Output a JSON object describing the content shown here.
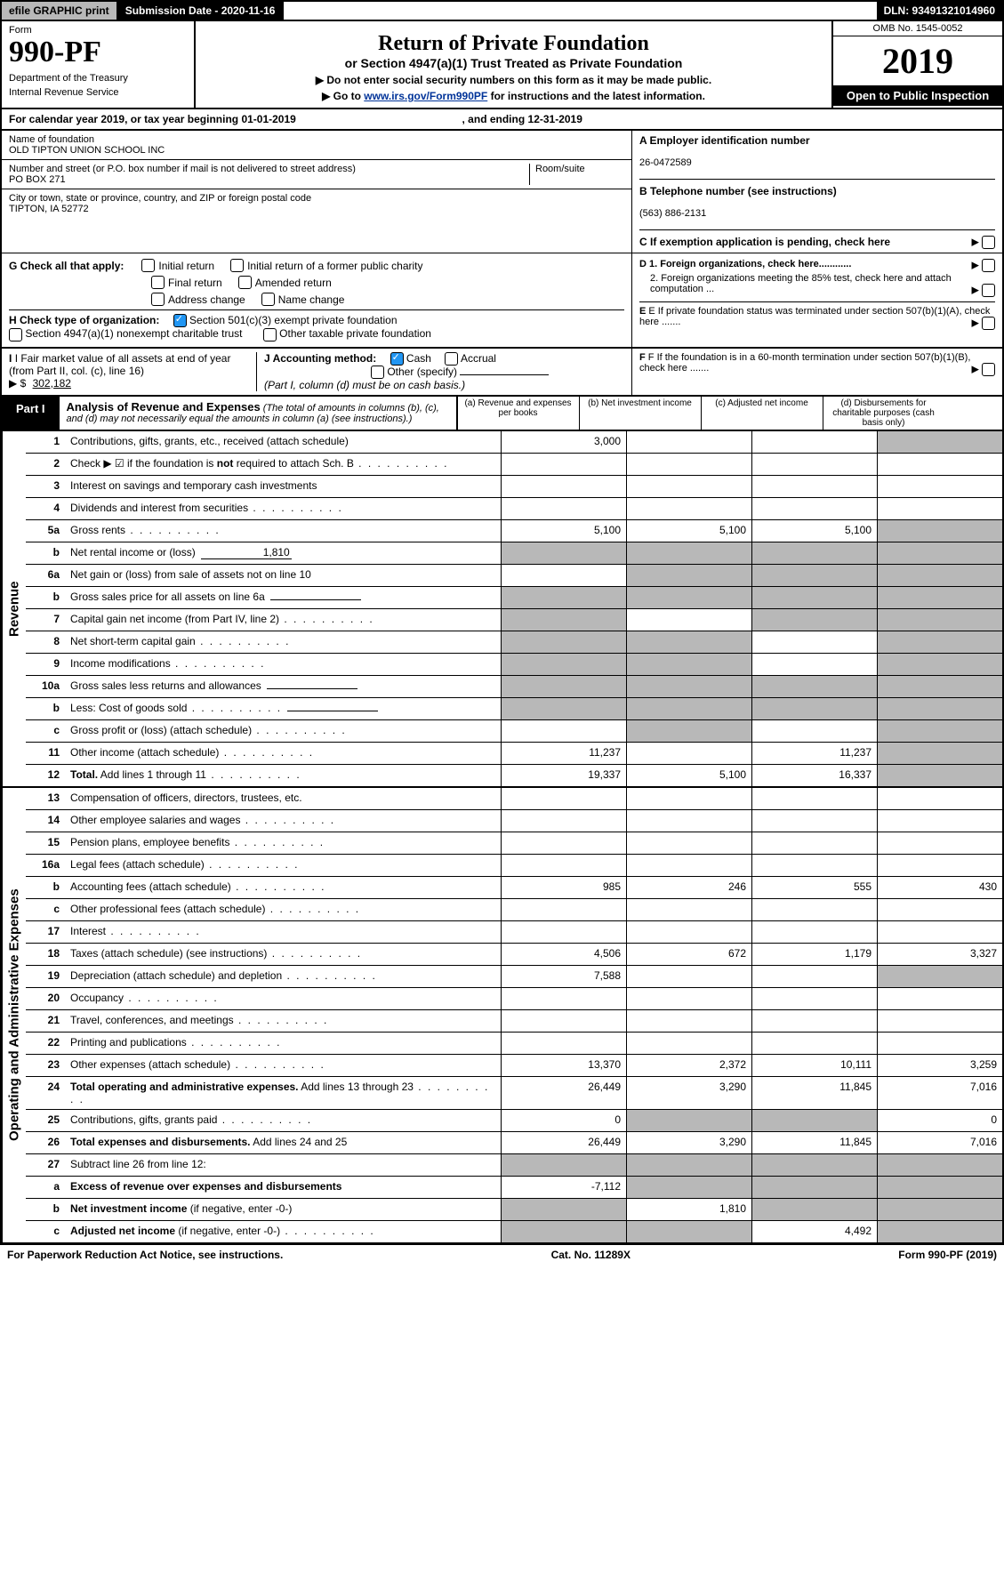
{
  "topbar": {
    "efile": "efile GRAPHIC print",
    "subdate_label": "Submission Date - 2020-11-16",
    "dln_label": "DLN: 93491321014960"
  },
  "header": {
    "form_label": "Form",
    "form_number": "990-PF",
    "dept1": "Department of the Treasury",
    "dept2": "Internal Revenue Service",
    "title": "Return of Private Foundation",
    "subtitle": "or Section 4947(a)(1) Trust Treated as Private Foundation",
    "note1": "▶ Do not enter social security numbers on this form as it may be made public.",
    "note2_pre": "▶ Go to ",
    "note2_link": "www.irs.gov/Form990PF",
    "note2_post": " for instructions and the latest information.",
    "omb": "OMB No. 1545-0052",
    "year": "2019",
    "open": "Open to Public Inspection"
  },
  "calendar": "For calendar year 2019, or tax year beginning 01-01-2019",
  "calendar_end": ", and ending 12-31-2019",
  "info": {
    "name_label": "Name of foundation",
    "name": "OLD TIPTON UNION SCHOOL INC",
    "addr_label": "Number and street (or P.O. box number if mail is not delivered to street address)",
    "addr": "PO BOX 271",
    "room_label": "Room/suite",
    "city_label": "City or town, state or province, country, and ZIP or foreign postal code",
    "city": "TIPTON, IA  52772",
    "ein_label": "A Employer identification number",
    "ein": "26-0472589",
    "phone_label": "B Telephone number (see instructions)",
    "phone": "(563) 886-2131",
    "c_label": "C If exemption application is pending, check here"
  },
  "checkG": {
    "label": "G Check all that apply:",
    "opts": [
      "Initial return",
      "Initial return of a former public charity",
      "Final return",
      "Amended return",
      "Address change",
      "Name change"
    ]
  },
  "checkH": {
    "label": "H Check type of organization:",
    "opt1": "Section 501(c)(3) exempt private foundation",
    "opt2": "Section 4947(a)(1) nonexempt charitable trust",
    "opt3": "Other taxable private foundation"
  },
  "d_label_1": "D 1. Foreign organizations, check here............",
  "d_label_2": "2. Foreign organizations meeting the 85% test, check here and attach computation ...",
  "e_label": "E  If private foundation status was terminated under section 507(b)(1)(A), check here .......",
  "f_label": "F  If the foundation is in a 60-month termination under section 507(b)(1)(B), check here .......",
  "i_label": "I Fair market value of all assets at end of year (from Part II, col. (c), line 16)",
  "i_value": "302,182",
  "j_label": "J Accounting method:",
  "j_opts": [
    "Cash",
    "Accrual",
    "Other (specify)"
  ],
  "j_note": "(Part I, column (d) must be on cash basis.)",
  "part1": {
    "label": "Part I",
    "title": "Analysis of Revenue and Expenses",
    "subtitle": "(The total of amounts in columns (b), (c), and (d) may not necessarily equal the amounts in column (a) (see instructions).)",
    "col_a": "(a)   Revenue and expenses per books",
    "col_b": "(b)  Net investment income",
    "col_c": "(c)  Adjusted net income",
    "col_d": "(d)  Disbursements for charitable purposes (cash basis only)"
  },
  "side_revenue": "Revenue",
  "side_expenses": "Operating and Administrative Expenses",
  "rows": [
    {
      "n": "1",
      "desc": "Contributions, gifts, grants, etc., received (attach schedule)",
      "a": "3,000",
      "b": "",
      "c": "",
      "d": "g"
    },
    {
      "n": "2",
      "desc": "Check ▶ ☑ if the foundation is <b>not</b> required to attach Sch. B",
      "dots": 1,
      "a": "",
      "b": "",
      "c": "",
      "d": ""
    },
    {
      "n": "3",
      "desc": "Interest on savings and temporary cash investments",
      "a": "",
      "b": "",
      "c": "",
      "d": ""
    },
    {
      "n": "4",
      "desc": "Dividends and interest from securities",
      "dots": 1,
      "a": "",
      "b": "",
      "c": "",
      "d": ""
    },
    {
      "n": "5a",
      "desc": "Gross rents",
      "dots": 1,
      "a": "5,100",
      "b": "5,100",
      "c": "5,100",
      "d": "g"
    },
    {
      "n": "b",
      "desc": "Net rental income or (loss)",
      "mini": "1,810",
      "a": "g",
      "b": "g",
      "c": "g",
      "d": "g"
    },
    {
      "n": "6a",
      "desc": "Net gain or (loss) from sale of assets not on line 10",
      "a": "",
      "b": "g",
      "c": "g",
      "d": "g"
    },
    {
      "n": "b",
      "desc": "Gross sales price for all assets on line 6a",
      "mini": "",
      "a": "g",
      "b": "g",
      "c": "g",
      "d": "g"
    },
    {
      "n": "7",
      "desc": "Capital gain net income (from Part IV, line 2)",
      "dots": 1,
      "a": "g",
      "b": "",
      "c": "g",
      "d": "g"
    },
    {
      "n": "8",
      "desc": "Net short-term capital gain",
      "dots": 1,
      "a": "g",
      "b": "g",
      "c": "",
      "d": "g"
    },
    {
      "n": "9",
      "desc": "Income modifications",
      "dots": 1,
      "a": "g",
      "b": "g",
      "c": "",
      "d": "g"
    },
    {
      "n": "10a",
      "desc": "Gross sales less returns and allowances",
      "mini": "",
      "a": "g",
      "b": "g",
      "c": "g",
      "d": "g"
    },
    {
      "n": "b",
      "desc": "Less: Cost of goods sold",
      "dots": 1,
      "mini": "",
      "a": "g",
      "b": "g",
      "c": "g",
      "d": "g"
    },
    {
      "n": "c",
      "desc": "Gross profit or (loss) (attach schedule)",
      "dots": 1,
      "a": "",
      "b": "g",
      "c": "",
      "d": "g"
    },
    {
      "n": "11",
      "desc": "Other income (attach schedule)",
      "dots": 1,
      "a": "11,237",
      "b": "",
      "c": "11,237",
      "d": "g"
    },
    {
      "n": "12",
      "desc": "<b>Total.</b> Add lines 1 through 11",
      "dots": 1,
      "a": "19,337",
      "b": "5,100",
      "c": "16,337",
      "d": "g"
    }
  ],
  "exp_rows": [
    {
      "n": "13",
      "desc": "Compensation of officers, directors, trustees, etc.",
      "a": "",
      "b": "",
      "c": "",
      "d": ""
    },
    {
      "n": "14",
      "desc": "Other employee salaries and wages",
      "dots": 1,
      "a": "",
      "b": "",
      "c": "",
      "d": ""
    },
    {
      "n": "15",
      "desc": "Pension plans, employee benefits",
      "dots": 1,
      "a": "",
      "b": "",
      "c": "",
      "d": ""
    },
    {
      "n": "16a",
      "desc": "Legal fees (attach schedule)",
      "dots": 1,
      "a": "",
      "b": "",
      "c": "",
      "d": ""
    },
    {
      "n": "b",
      "desc": "Accounting fees (attach schedule)",
      "dots": 1,
      "a": "985",
      "b": "246",
      "c": "555",
      "d": "430"
    },
    {
      "n": "c",
      "desc": "Other professional fees (attach schedule)",
      "dots": 1,
      "a": "",
      "b": "",
      "c": "",
      "d": ""
    },
    {
      "n": "17",
      "desc": "Interest",
      "dots": 1,
      "a": "",
      "b": "",
      "c": "",
      "d": ""
    },
    {
      "n": "18",
      "desc": "Taxes (attach schedule) (see instructions)",
      "dots": 1,
      "a": "4,506",
      "b": "672",
      "c": "1,179",
      "d": "3,327"
    },
    {
      "n": "19",
      "desc": "Depreciation (attach schedule) and depletion",
      "dots": 1,
      "a": "7,588",
      "b": "",
      "c": "",
      "d": "g"
    },
    {
      "n": "20",
      "desc": "Occupancy",
      "dots": 1,
      "a": "",
      "b": "",
      "c": "",
      "d": ""
    },
    {
      "n": "21",
      "desc": "Travel, conferences, and meetings",
      "dots": 1,
      "a": "",
      "b": "",
      "c": "",
      "d": ""
    },
    {
      "n": "22",
      "desc": "Printing and publications",
      "dots": 1,
      "a": "",
      "b": "",
      "c": "",
      "d": ""
    },
    {
      "n": "23",
      "desc": "Other expenses (attach schedule)",
      "dots": 1,
      "a": "13,370",
      "b": "2,372",
      "c": "10,111",
      "d": "3,259"
    },
    {
      "n": "24",
      "desc": "<b>Total operating and administrative expenses.</b> Add lines 13 through 23",
      "dots": 1,
      "a": "26,449",
      "b": "3,290",
      "c": "11,845",
      "d": "7,016"
    },
    {
      "n": "25",
      "desc": "Contributions, gifts, grants paid",
      "dots": 1,
      "a": "0",
      "b": "g",
      "c": "g",
      "d": "0"
    },
    {
      "n": "26",
      "desc": "<b>Total expenses and disbursements.</b> Add lines 24 and 25",
      "a": "26,449",
      "b": "3,290",
      "c": "11,845",
      "d": "7,016"
    },
    {
      "n": "27",
      "desc": "Subtract line 26 from line 12:",
      "a": "g",
      "b": "g",
      "c": "g",
      "d": "g"
    },
    {
      "n": "a",
      "desc": "<b>Excess of revenue over expenses and disbursements</b>",
      "a": "-7,112",
      "b": "g",
      "c": "g",
      "d": "g"
    },
    {
      "n": "b",
      "desc": "<b>Net investment income</b> (if negative, enter -0-)",
      "a": "g",
      "b": "1,810",
      "c": "g",
      "d": "g"
    },
    {
      "n": "c",
      "desc": "<b>Adjusted net income</b> (if negative, enter -0-)",
      "dots": 1,
      "a": "g",
      "b": "g",
      "c": "4,492",
      "d": "g"
    }
  ],
  "footer": {
    "left": "For Paperwork Reduction Act Notice, see instructions.",
    "center": "Cat. No. 11289X",
    "right": "Form 990-PF (2019)"
  }
}
